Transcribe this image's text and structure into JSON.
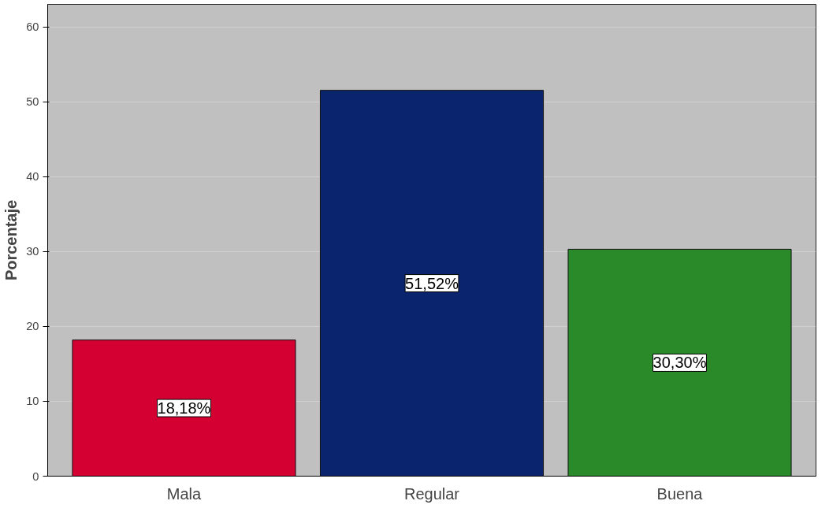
{
  "chart_data": {
    "type": "bar",
    "ylabel": "Porcentaje",
    "categories": [
      "Mala",
      "Regular",
      "Buena"
    ],
    "values": [
      18.18,
      51.52,
      30.3
    ],
    "colors": [
      "#d50032",
      "#0a256e",
      "#2a8a2a"
    ],
    "value_labels": [
      "18,18%",
      "51,52%",
      "30,30%"
    ],
    "ylim": [
      0,
      63
    ],
    "yticks": [
      0,
      10,
      20,
      30,
      40,
      50,
      60
    ],
    "grid": "y"
  }
}
